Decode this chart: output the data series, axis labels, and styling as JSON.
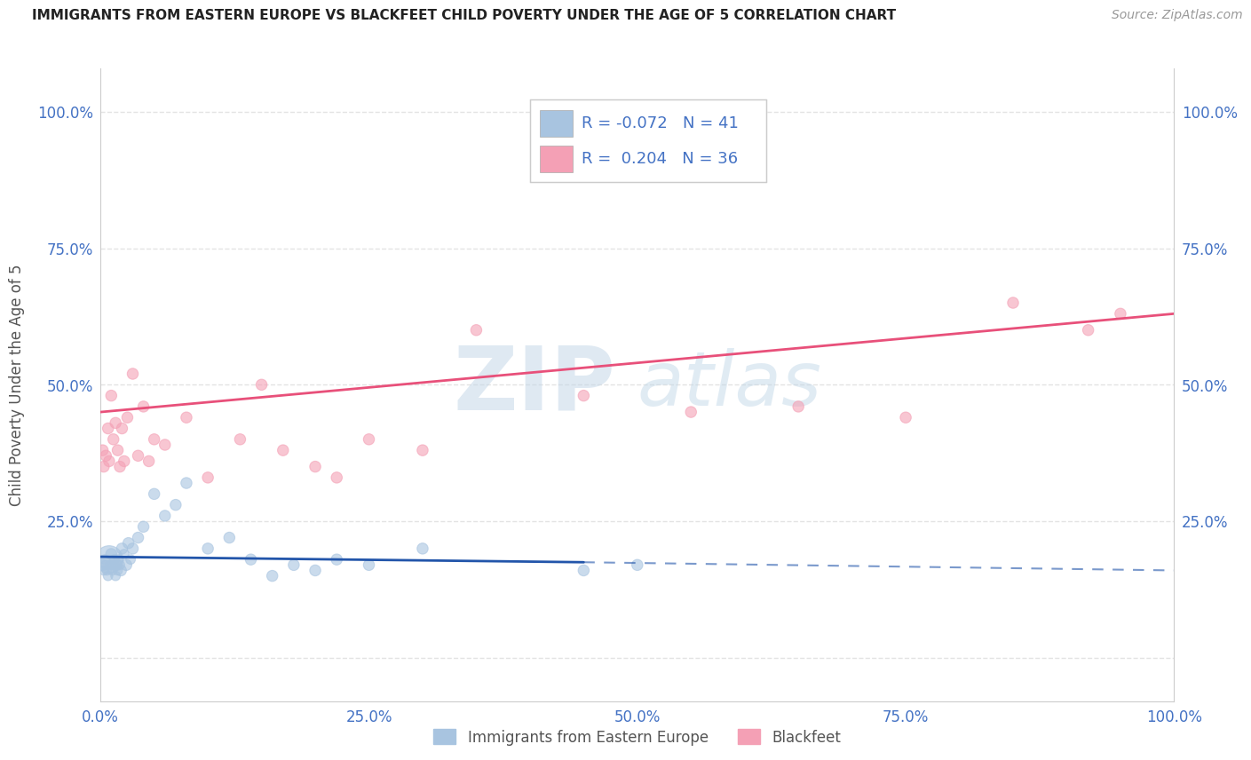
{
  "title": "IMMIGRANTS FROM EASTERN EUROPE VS BLACKFEET CHILD POVERTY UNDER THE AGE OF 5 CORRELATION CHART",
  "source": "Source: ZipAtlas.com",
  "ylabel": "Child Poverty Under the Age of 5",
  "xlim": [
    0,
    100
  ],
  "ylim": [
    -8,
    108
  ],
  "xticks": [
    0,
    25,
    50,
    75,
    100
  ],
  "xticklabels": [
    "0.0%",
    "25.0%",
    "50.0%",
    "75.0%",
    "100.0%"
  ],
  "yticks": [
    0,
    25,
    50,
    75,
    100
  ],
  "yticklabels": [
    "",
    "25.0%",
    "50.0%",
    "75.0%",
    "100.0%"
  ],
  "legend_r_blue": "-0.072",
  "legend_n_blue": "41",
  "legend_r_pink": "0.204",
  "legend_n_pink": "36",
  "legend_label_blue": "Immigrants from Eastern Europe",
  "legend_label_pink": "Blackfeet",
  "blue_color": "#a8c4e0",
  "pink_color": "#f4a0b5",
  "trend_blue_color": "#2255aa",
  "trend_pink_color": "#e8507a",
  "watermark_zip": "ZIP",
  "watermark_atlas": "atlas",
  "background_color": "#ffffff",
  "grid_color": "#dddddd",
  "blue_scatter_x": [
    0.2,
    0.3,
    0.4,
    0.5,
    0.6,
    0.7,
    0.8,
    0.9,
    1.0,
    1.1,
    1.2,
    1.3,
    1.4,
    1.5,
    1.6,
    1.7,
    1.8,
    1.9,
    2.0,
    2.2,
    2.4,
    2.6,
    2.8,
    3.0,
    3.5,
    4.0,
    5.0,
    6.0,
    7.0,
    8.0,
    10.0,
    12.0,
    14.0,
    16.0,
    18.0,
    20.0,
    22.0,
    25.0,
    30.0,
    45.0,
    50.0
  ],
  "blue_scatter_y": [
    17,
    16,
    18,
    17,
    16,
    15,
    18,
    17,
    19,
    16,
    17,
    18,
    15,
    17,
    16,
    18,
    17,
    16,
    20,
    19,
    17,
    21,
    18,
    20,
    22,
    24,
    30,
    26,
    28,
    32,
    20,
    22,
    18,
    15,
    17,
    16,
    18,
    17,
    20,
    16,
    17
  ],
  "blue_scatter_sizes": [
    80,
    60,
    60,
    60,
    60,
    60,
    500,
    60,
    80,
    60,
    60,
    60,
    60,
    80,
    60,
    60,
    60,
    80,
    80,
    60,
    80,
    80,
    60,
    80,
    80,
    80,
    80,
    80,
    80,
    80,
    80,
    80,
    80,
    80,
    80,
    80,
    80,
    80,
    80,
    80,
    80
  ],
  "pink_scatter_x": [
    0.2,
    0.3,
    0.5,
    0.7,
    0.8,
    1.0,
    1.2,
    1.4,
    1.6,
    1.8,
    2.0,
    2.2,
    2.5,
    3.0,
    3.5,
    4.0,
    4.5,
    5.0,
    6.0,
    8.0,
    10.0,
    13.0,
    15.0,
    17.0,
    20.0,
    22.0,
    25.0,
    30.0,
    35.0,
    45.0,
    55.0,
    65.0,
    75.0,
    85.0,
    92.0,
    95.0
  ],
  "pink_scatter_y": [
    38,
    35,
    37,
    42,
    36,
    48,
    40,
    43,
    38,
    35,
    42,
    36,
    44,
    52,
    37,
    46,
    36,
    40,
    39,
    44,
    33,
    40,
    50,
    38,
    35,
    33,
    40,
    38,
    60,
    48,
    45,
    46,
    44,
    65,
    60,
    63
  ],
  "pink_scatter_sizes": [
    80,
    80,
    80,
    80,
    80,
    80,
    80,
    80,
    80,
    80,
    80,
    80,
    80,
    80,
    80,
    80,
    80,
    80,
    80,
    80,
    80,
    80,
    80,
    80,
    80,
    80,
    80,
    80,
    80,
    80,
    80,
    80,
    80,
    80,
    80,
    80
  ],
  "blue_trend_x0": 0,
  "blue_trend_x_solid_end": 45,
  "blue_trend_x_end": 100,
  "blue_trend_y0": 18.5,
  "blue_trend_y_solid_end": 17.5,
  "blue_trend_y_end": 16.0,
  "pink_trend_x0": 0,
  "pink_trend_x_end": 100,
  "pink_trend_y0": 45.0,
  "pink_trend_y_end": 63.0
}
